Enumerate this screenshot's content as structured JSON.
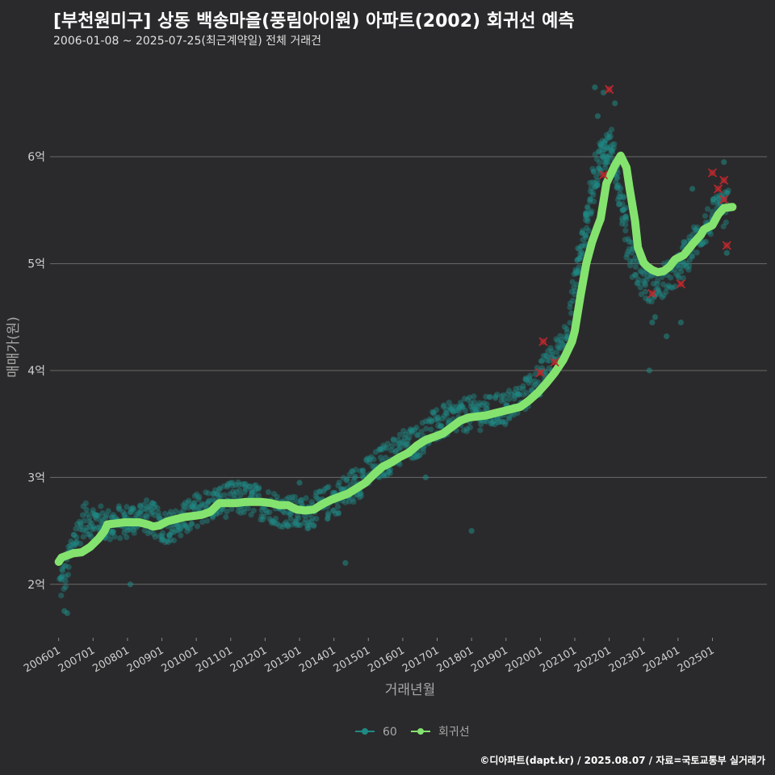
{
  "header": {
    "title": "[부천원미구] 상동 백송마을(풍림아이원) 아파트(2002) 회귀선 예측",
    "subtitle": "2006-01-08 ~ 2025-07-25(최근계약일) 전체 거래건"
  },
  "footer": {
    "credit": "©디아파트(dapt.kr) / 2025.08.07 / 자료=국토교통부 실거래가"
  },
  "colors": {
    "background": "#2a2a2c",
    "grid": "#6a6a6a",
    "scatter": "#1f8a84",
    "regression": "#84e36e",
    "cancelled": "#c0282d"
  },
  "chart_data": {
    "type": "scatter",
    "title": "[부천원미구] 상동 백송마을(풍림아이원) 아파트(2002) 회귀선 예측",
    "xlabel": "거래년월",
    "ylabel": "매매가(원)",
    "ylim": [
      1.5,
      6.9
    ],
    "xlim": [
      "2005-10",
      "2026-08"
    ],
    "y_ticks": [
      2,
      3,
      4,
      5,
      6
    ],
    "y_tick_labels": [
      "2억",
      "3억",
      "4억",
      "5억",
      "6억"
    ],
    "x_ticks": [
      "2006-01",
      "2007-01",
      "2008-01",
      "2009-01",
      "2010-01",
      "2011-01",
      "2012-01",
      "2013-01",
      "2014-01",
      "2015-01",
      "2016-01",
      "2017-01",
      "2018-01",
      "2019-01",
      "2020-01",
      "2021-01",
      "2022-01",
      "2023-01",
      "2024-01",
      "2025-01"
    ],
    "x_tick_labels": [
      "200601",
      "200701",
      "200801",
      "200901",
      "201001",
      "201101",
      "201201",
      "201301",
      "201401",
      "201501",
      "201601",
      "201701",
      "201801",
      "201901",
      "202001",
      "202101",
      "202201",
      "202301",
      "202401",
      "202501"
    ],
    "grid": "horizontal",
    "legend_position": "bottom",
    "legend": [
      "60",
      "회귀선"
    ],
    "series": [
      {
        "name": "60",
        "kind": "scatter",
        "trend": [
          [
            "2006-01",
            2.0
          ],
          [
            "2006-03",
            2.1
          ],
          [
            "2006-06",
            2.4
          ],
          [
            "2006-09",
            2.6
          ],
          [
            "2007-01",
            2.6
          ],
          [
            "2007-06",
            2.55
          ],
          [
            "2008-01",
            2.6
          ],
          [
            "2008-06",
            2.65
          ],
          [
            "2009-01",
            2.55
          ],
          [
            "2009-06",
            2.55
          ],
          [
            "2010-01",
            2.7
          ],
          [
            "2010-06",
            2.75
          ],
          [
            "2011-01",
            2.8
          ],
          [
            "2011-06",
            2.8
          ],
          [
            "2012-01",
            2.75
          ],
          [
            "2012-06",
            2.7
          ],
          [
            "2013-01",
            2.65
          ],
          [
            "2013-06",
            2.7
          ],
          [
            "2014-01",
            2.8
          ],
          [
            "2014-06",
            2.9
          ],
          [
            "2015-01",
            3.05
          ],
          [
            "2015-06",
            3.15
          ],
          [
            "2016-01",
            3.3
          ],
          [
            "2016-06",
            3.35
          ],
          [
            "2017-01",
            3.5
          ],
          [
            "2017-06",
            3.55
          ],
          [
            "2018-01",
            3.6
          ],
          [
            "2018-06",
            3.6
          ],
          [
            "2019-01",
            3.65
          ],
          [
            "2019-06",
            3.75
          ],
          [
            "2020-01",
            3.95
          ],
          [
            "2020-06",
            4.15
          ],
          [
            "2020-09",
            4.3
          ],
          [
            "2021-01",
            4.9
          ],
          [
            "2021-06",
            5.6
          ],
          [
            "2021-09",
            6.0
          ],
          [
            "2022-01",
            6.1
          ],
          [
            "2022-04",
            5.7
          ],
          [
            "2022-07",
            5.2
          ],
          [
            "2022-10",
            4.95
          ],
          [
            "2023-01",
            4.8
          ],
          [
            "2023-06",
            4.8
          ],
          [
            "2024-01",
            4.95
          ],
          [
            "2024-06",
            5.2
          ],
          [
            "2025-01",
            5.45
          ],
          [
            "2025-07",
            5.55
          ]
        ],
        "outliers": [
          [
            "2006-03",
            1.75
          ],
          [
            "2006-04",
            1.73
          ],
          [
            "2008-02",
            2.0
          ],
          [
            "2009-01",
            2.45
          ],
          [
            "2013-01",
            2.95
          ],
          [
            "2014-05",
            2.2
          ],
          [
            "2016-09",
            3.0
          ],
          [
            "2018-01",
            2.5
          ],
          [
            "2021-08",
            6.65
          ],
          [
            "2021-11",
            6.6
          ],
          [
            "2022-03",
            6.5
          ],
          [
            "2021-09",
            6.38
          ],
          [
            "2023-03",
            4.0
          ],
          [
            "2023-04",
            4.45
          ],
          [
            "2023-05",
            4.5
          ],
          [
            "2023-09",
            4.32
          ],
          [
            "2024-02",
            4.45
          ],
          [
            "2024-06",
            5.7
          ],
          [
            "2025-05",
            5.95
          ],
          [
            "2025-06",
            5.1
          ]
        ]
      },
      {
        "name": "회귀선",
        "kind": "line",
        "points": [
          [
            "2006-01",
            2.21
          ],
          [
            "2006-02",
            2.25
          ],
          [
            "2006-04",
            2.27
          ],
          [
            "2006-06",
            2.29
          ],
          [
            "2006-09",
            2.3
          ],
          [
            "2006-12",
            2.35
          ],
          [
            "2007-03",
            2.43
          ],
          [
            "2007-05",
            2.5
          ],
          [
            "2007-06",
            2.56
          ],
          [
            "2007-09",
            2.57
          ],
          [
            "2007-12",
            2.58
          ],
          [
            "2008-03",
            2.58
          ],
          [
            "2008-05",
            2.58
          ],
          [
            "2008-08",
            2.56
          ],
          [
            "2008-10",
            2.54
          ],
          [
            "2008-12",
            2.55
          ],
          [
            "2009-03",
            2.59
          ],
          [
            "2009-06",
            2.61
          ],
          [
            "2009-09",
            2.63
          ],
          [
            "2009-12",
            2.64
          ],
          [
            "2010-03",
            2.65
          ],
          [
            "2010-06",
            2.68
          ],
          [
            "2010-09",
            2.76
          ],
          [
            "2010-12",
            2.76
          ],
          [
            "2011-03",
            2.76
          ],
          [
            "2011-06",
            2.77
          ],
          [
            "2011-09",
            2.77
          ],
          [
            "2011-12",
            2.77
          ],
          [
            "2012-03",
            2.76
          ],
          [
            "2012-06",
            2.74
          ],
          [
            "2012-09",
            2.74
          ],
          [
            "2012-12",
            2.7
          ],
          [
            "2013-03",
            2.69
          ],
          [
            "2013-06",
            2.7
          ],
          [
            "2013-09",
            2.75
          ],
          [
            "2013-12",
            2.79
          ],
          [
            "2014-03",
            2.82
          ],
          [
            "2014-06",
            2.85
          ],
          [
            "2014-09",
            2.9
          ],
          [
            "2014-12",
            2.95
          ],
          [
            "2015-03",
            3.03
          ],
          [
            "2015-06",
            3.1
          ],
          [
            "2015-09",
            3.14
          ],
          [
            "2015-12",
            3.19
          ],
          [
            "2016-03",
            3.23
          ],
          [
            "2016-06",
            3.3
          ],
          [
            "2016-09",
            3.35
          ],
          [
            "2016-12",
            3.38
          ],
          [
            "2017-03",
            3.41
          ],
          [
            "2017-06",
            3.47
          ],
          [
            "2017-09",
            3.53
          ],
          [
            "2017-12",
            3.56
          ],
          [
            "2018-03",
            3.57
          ],
          [
            "2018-06",
            3.58
          ],
          [
            "2018-09",
            3.6
          ],
          [
            "2018-12",
            3.62
          ],
          [
            "2019-03",
            3.64
          ],
          [
            "2019-06",
            3.66
          ],
          [
            "2019-09",
            3.72
          ],
          [
            "2019-12",
            3.79
          ],
          [
            "2020-03",
            3.88
          ],
          [
            "2020-06",
            3.98
          ],
          [
            "2020-09",
            4.1
          ],
          [
            "2020-12",
            4.27
          ],
          [
            "2021-01",
            4.37
          ],
          [
            "2021-03",
            4.7
          ],
          [
            "2021-05",
            5.0
          ],
          [
            "2021-07",
            5.2
          ],
          [
            "2021-09",
            5.35
          ],
          [
            "2021-10",
            5.42
          ],
          [
            "2021-12",
            5.75
          ],
          [
            "2022-03",
            5.92
          ],
          [
            "2022-05",
            6.01
          ],
          [
            "2022-07",
            5.9
          ],
          [
            "2022-08",
            5.72
          ],
          [
            "2022-10",
            5.4
          ],
          [
            "2022-11",
            5.15
          ],
          [
            "2023-01",
            5.01
          ],
          [
            "2023-02",
            4.98
          ],
          [
            "2023-04",
            4.94
          ],
          [
            "2023-06",
            4.92
          ],
          [
            "2023-08",
            4.93
          ],
          [
            "2023-10",
            4.97
          ],
          [
            "2023-12",
            5.04
          ],
          [
            "2024-03",
            5.08
          ],
          [
            "2024-06",
            5.18
          ],
          [
            "2024-09",
            5.27
          ],
          [
            "2024-10",
            5.32
          ],
          [
            "2025-01",
            5.36
          ],
          [
            "2025-03",
            5.46
          ],
          [
            "2025-05",
            5.52
          ],
          [
            "2025-08",
            5.53
          ]
        ]
      },
      {
        "name": "",
        "kind": "cancelled",
        "points": [
          [
            "2020-02",
            4.27
          ],
          [
            "2020-01",
            3.98
          ],
          [
            "2020-06",
            4.08
          ],
          [
            "2021-11",
            5.83
          ],
          [
            "2022-01",
            6.63
          ],
          [
            "2023-04",
            4.72
          ],
          [
            "2024-02",
            4.81
          ],
          [
            "2025-01",
            5.85
          ],
          [
            "2025-03",
            5.7
          ],
          [
            "2025-05",
            5.78
          ],
          [
            "2025-06",
            5.17
          ],
          [
            "2025-05",
            5.6
          ]
        ]
      }
    ]
  }
}
